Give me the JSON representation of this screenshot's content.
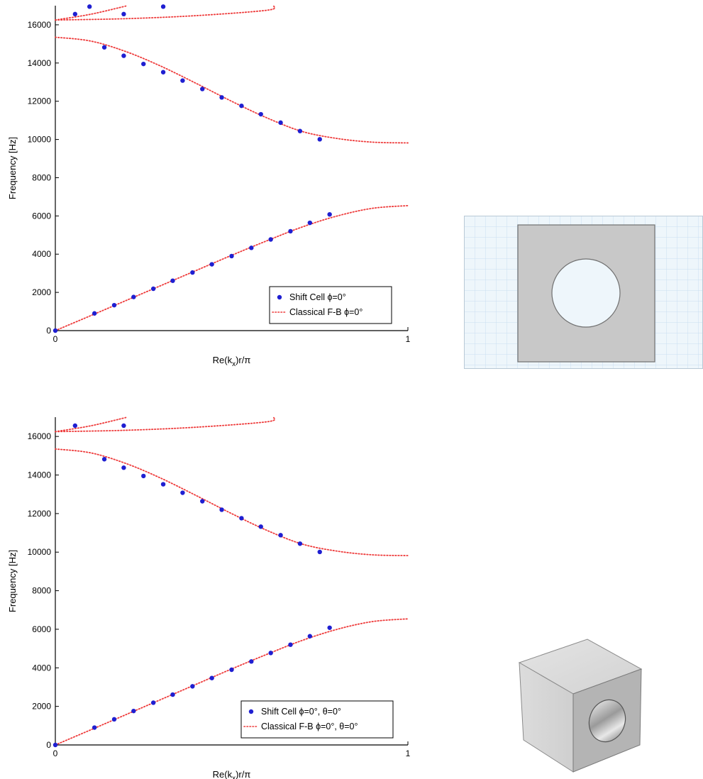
{
  "colors": {
    "shift_marker": "#1f1fd1",
    "classical_line": "#ee3b3b",
    "axis": "#000000",
    "inset_grid_bg": "#eef6fb",
    "inset_grid_line": "#c9dff0",
    "solid_gray": "#c8c8c8"
  },
  "chart_data": [
    {
      "type": "scatter",
      "xlabel": "Re(k_x)r/π",
      "xlabel_main": "Re(k",
      "xlabel_sub": "x",
      "xlabel_tail": ")r/π",
      "ylabel": "Frequency [Hz]",
      "xlim": [
        0,
        1
      ],
      "ylim": [
        0,
        17000
      ],
      "xticks": [
        0,
        1
      ],
      "xtick_labels": [
        "0",
        "1"
      ],
      "yticks": [
        0,
        2000,
        4000,
        6000,
        8000,
        10000,
        12000,
        14000,
        16000
      ],
      "ytick_labels": [
        "0",
        "2000",
        "4000",
        "6000",
        "8000",
        "10000",
        "12000",
        "14000",
        "16000"
      ],
      "grid": false,
      "legend_position": "bottom-right",
      "series": [
        {
          "name": "Shift Cell ϕ=0°",
          "style": "markers",
          "points": [
            [
              0.0,
              0
            ],
            [
              0.111,
              900
            ],
            [
              0.167,
              1330
            ],
            [
              0.222,
              1760
            ],
            [
              0.278,
              2190
            ],
            [
              0.333,
              2610
            ],
            [
              0.389,
              3040
            ],
            [
              0.444,
              3470
            ],
            [
              0.5,
              3900
            ],
            [
              0.556,
              4330
            ],
            [
              0.611,
              4770
            ],
            [
              0.667,
              5200
            ],
            [
              0.722,
              5640
            ],
            [
              0.778,
              6080
            ],
            [
              0.139,
              14820
            ],
            [
              0.194,
              14380
            ],
            [
              0.25,
              13950
            ],
            [
              0.306,
              13520
            ],
            [
              0.361,
              13080
            ],
            [
              0.417,
              12640
            ],
            [
              0.472,
              12200
            ],
            [
              0.528,
              11760
            ],
            [
              0.583,
              11320
            ],
            [
              0.639,
              10880
            ],
            [
              0.694,
              10440
            ],
            [
              0.75,
              10010
            ],
            [
              0.056,
              16560
            ],
            [
              0.097,
              16950
            ],
            [
              0.194,
              16560
            ],
            [
              0.306,
              16950
            ]
          ]
        },
        {
          "name": "Classical F-B ϕ=0°",
          "style": "dotted-line",
          "lines": [
            [
              [
                0.0,
                0
              ],
              [
                0.1,
                780
              ],
              [
                0.2,
                1570
              ],
              [
                0.3,
                2360
              ],
              [
                0.4,
                3150
              ],
              [
                0.5,
                3940
              ],
              [
                0.6,
                4700
              ],
              [
                0.7,
                5420
              ],
              [
                0.8,
                6000
              ],
              [
                0.9,
                6400
              ],
              [
                1.0,
                6540
              ]
            ],
            [
              [
                0.0,
                15350
              ],
              [
                0.1,
                15150
              ],
              [
                0.2,
                14600
              ],
              [
                0.3,
                13830
              ],
              [
                0.4,
                12930
              ],
              [
                0.5,
                12000
              ],
              [
                0.6,
                11130
              ],
              [
                0.7,
                10420
              ],
              [
                0.8,
                10050
              ],
              [
                0.9,
                9860
              ],
              [
                1.0,
                9820
              ]
            ],
            [
              [
                0.0,
                16250
              ],
              [
                0.1,
                16550
              ],
              [
                0.2,
                16980
              ]
            ],
            [
              [
                0.0,
                16250
              ],
              [
                0.2,
                16320
              ],
              [
                0.4,
                16480
              ],
              [
                0.6,
                16760
              ],
              [
                0.62,
                16980
              ]
            ]
          ]
        }
      ]
    },
    {
      "type": "scatter",
      "xlabel": "Re(k_x)r/π",
      "xlabel_main": "Re(k",
      "xlabel_sub": "x",
      "xlabel_tail": ")r/π",
      "ylabel": "Frequency [Hz]",
      "xlim": [
        0,
        1
      ],
      "ylim": [
        0,
        17000
      ],
      "xticks": [
        0,
        1
      ],
      "xtick_labels": [
        "0",
        "1"
      ],
      "yticks": [
        0,
        2000,
        4000,
        6000,
        8000,
        10000,
        12000,
        14000,
        16000
      ],
      "ytick_labels": [
        "0",
        "2000",
        "4000",
        "6000",
        "8000",
        "10000",
        "12000",
        "14000",
        "16000"
      ],
      "grid": false,
      "legend_position": "bottom-right",
      "series": [
        {
          "name": "Shift Cell ϕ=0°, θ=0°",
          "style": "markers",
          "points": [
            [
              0.0,
              0
            ],
            [
              0.111,
              900
            ],
            [
              0.167,
              1330
            ],
            [
              0.222,
              1760
            ],
            [
              0.278,
              2190
            ],
            [
              0.333,
              2610
            ],
            [
              0.389,
              3040
            ],
            [
              0.444,
              3470
            ],
            [
              0.5,
              3900
            ],
            [
              0.556,
              4330
            ],
            [
              0.611,
              4770
            ],
            [
              0.667,
              5200
            ],
            [
              0.722,
              5640
            ],
            [
              0.778,
              6080
            ],
            [
              0.139,
              14820
            ],
            [
              0.194,
              14380
            ],
            [
              0.25,
              13950
            ],
            [
              0.306,
              13520
            ],
            [
              0.361,
              13080
            ],
            [
              0.417,
              12640
            ],
            [
              0.472,
              12200
            ],
            [
              0.528,
              11760
            ],
            [
              0.583,
              11320
            ],
            [
              0.639,
              10880
            ],
            [
              0.694,
              10440
            ],
            [
              0.75,
              10010
            ],
            [
              0.056,
              16560
            ],
            [
              0.194,
              16560
            ]
          ]
        },
        {
          "name": "Classical F-B ϕ=0°, θ=0°",
          "style": "dotted-line",
          "lines": [
            [
              [
                0.0,
                0
              ],
              [
                0.1,
                780
              ],
              [
                0.2,
                1570
              ],
              [
                0.3,
                2360
              ],
              [
                0.4,
                3150
              ],
              [
                0.5,
                3940
              ],
              [
                0.6,
                4700
              ],
              [
                0.7,
                5420
              ],
              [
                0.8,
                6000
              ],
              [
                0.9,
                6400
              ],
              [
                1.0,
                6540
              ]
            ],
            [
              [
                0.0,
                15350
              ],
              [
                0.1,
                15150
              ],
              [
                0.2,
                14600
              ],
              [
                0.3,
                13830
              ],
              [
                0.4,
                12930
              ],
              [
                0.5,
                12000
              ],
              [
                0.6,
                11130
              ],
              [
                0.7,
                10420
              ],
              [
                0.8,
                10050
              ],
              [
                0.9,
                9860
              ],
              [
                1.0,
                9820
              ]
            ],
            [
              [
                0.0,
                16250
              ],
              [
                0.1,
                16550
              ],
              [
                0.2,
                16980
              ]
            ],
            [
              [
                0.0,
                16250
              ],
              [
                0.2,
                16320
              ],
              [
                0.4,
                16480
              ],
              [
                0.6,
                16760
              ],
              [
                0.62,
                16980
              ]
            ]
          ]
        }
      ]
    }
  ]
}
